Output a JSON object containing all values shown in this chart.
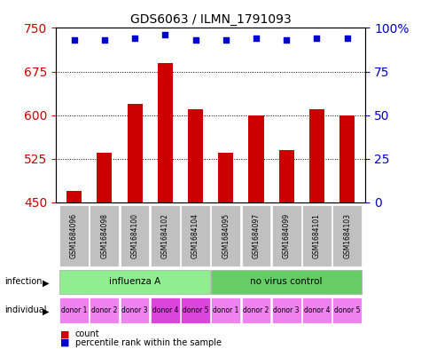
{
  "title": "GDS6063 / ILMN_1791093",
  "samples": [
    "GSM1684096",
    "GSM1684098",
    "GSM1684100",
    "GSM1684102",
    "GSM1684104",
    "GSM1684095",
    "GSM1684097",
    "GSM1684099",
    "GSM1684101",
    "GSM1684103"
  ],
  "counts": [
    470,
    535,
    620,
    690,
    610,
    535,
    600,
    540,
    610,
    600
  ],
  "percentiles": [
    93,
    93,
    94,
    96,
    93,
    93,
    94,
    93,
    94,
    94
  ],
  "ylim_left": [
    450,
    750
  ],
  "ylim_right": [
    0,
    100
  ],
  "yticks_left": [
    450,
    525,
    600,
    675,
    750
  ],
  "yticks_right": [
    0,
    25,
    50,
    75,
    100
  ],
  "infection_groups": [
    {
      "label": "influenza A",
      "start": 0,
      "end": 5,
      "color": "#90EE90"
    },
    {
      "label": "no virus control",
      "start": 5,
      "end": 10,
      "color": "#66CC66"
    }
  ],
  "donors": [
    "donor 1",
    "donor 2",
    "donor 3",
    "donor 4",
    "donor 5",
    "donor 1",
    "donor 2",
    "donor 3",
    "donor 4",
    "donor 5"
  ],
  "donor_colors": [
    "#EE82EE",
    "#EE82EE",
    "#EE82EE",
    "#DD44DD",
    "#DD44DD",
    "#EE82EE",
    "#EE82EE",
    "#EE82EE",
    "#EE82EE",
    "#EE82EE"
  ],
  "bar_color": "#CC0000",
  "dot_color": "#0000CC",
  "sample_bg_color": "#C0C0C0",
  "legend_count_color": "#CC0000",
  "legend_percentile_color": "#0000CC",
  "background_color": "#FFFFFF",
  "grid_color": "#000000"
}
